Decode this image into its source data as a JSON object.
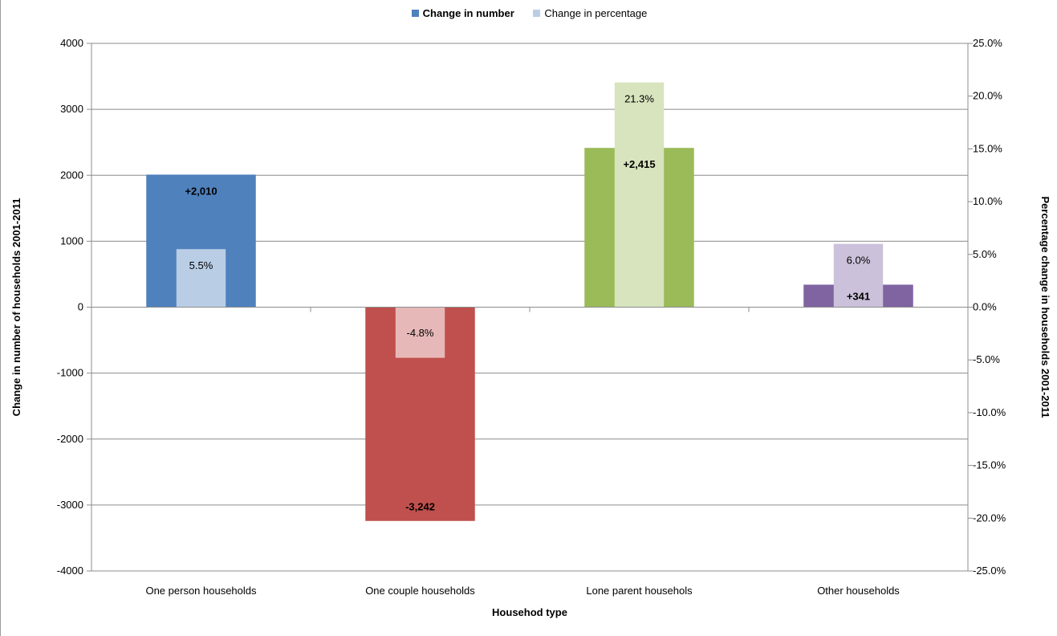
{
  "chart_data": {
    "type": "bar",
    "categories": [
      "One person households",
      "One couple households",
      "Lone parent househols",
      "Other households"
    ],
    "series": [
      {
        "name": "Change in number",
        "axis": "left",
        "values": [
          2010,
          -3242,
          2415,
          341
        ],
        "labels": [
          "+2,010",
          "-3,242",
          "+2,415",
          "+341"
        ]
      },
      {
        "name": "Change in percentage",
        "axis": "right",
        "values": [
          5.5,
          -4.8,
          21.3,
          6.0
        ],
        "labels": [
          "5.5%",
          "-4.8%",
          "21.3%",
          "6.0%"
        ]
      }
    ],
    "bar_colors": {
      "number": [
        "#4f81bd",
        "#c0504d",
        "#9bbb59",
        "#8064a2"
      ],
      "percentage": [
        "#b9cde5",
        "#e6b9b8",
        "#d7e4bd",
        "#ccc1da"
      ]
    },
    "legend_colors": [
      "#4f81bd",
      "#b9cde5"
    ],
    "legend_position": "top-center",
    "xlabel": "Househod type",
    "ylabel": "Change in number of households  2001-2011",
    "y2label": "Percentage change in households  2001-2011",
    "ylim": [
      -4000,
      4000
    ],
    "y2lim": [
      -25,
      25
    ],
    "yticks": [
      "-4000",
      "-3000",
      "-2000",
      "-1000",
      "0",
      "1000",
      "2000",
      "3000",
      "4000"
    ],
    "y2ticks": [
      "-25.0%",
      "-20.0%",
      "-15.0%",
      "-10.0%",
      "-5.0%",
      "0.0%",
      "5.0%",
      "10.0%",
      "15.0%",
      "20.0%",
      "25.0%"
    ],
    "grid": true
  }
}
